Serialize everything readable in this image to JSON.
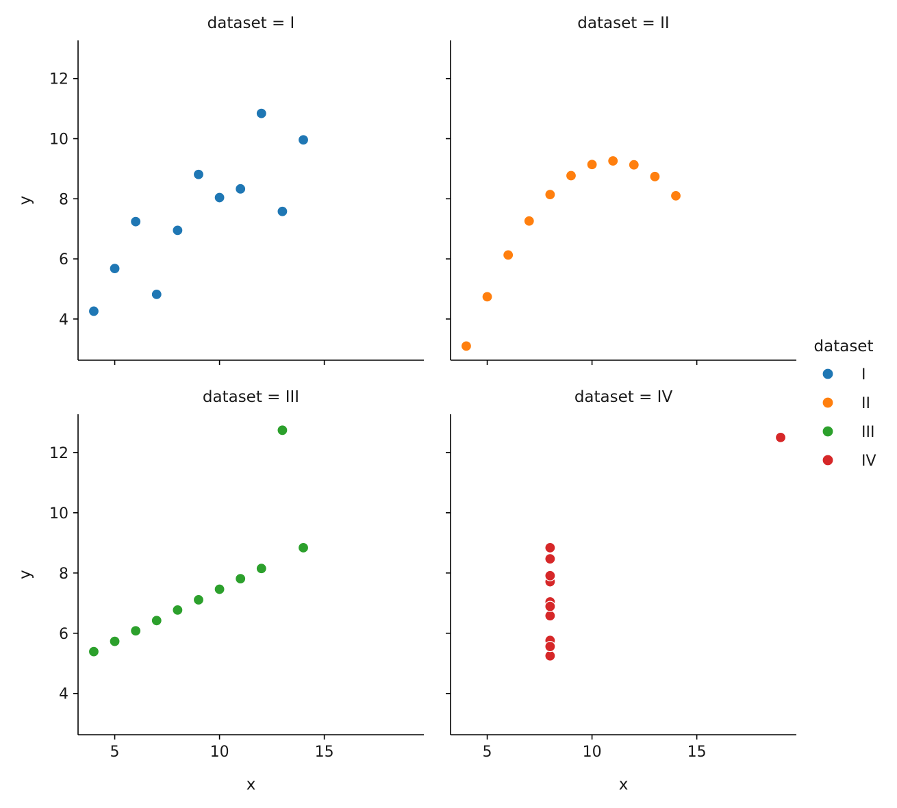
{
  "chart_data": {
    "type": "scatter",
    "xlabel": "x",
    "ylabel": "y",
    "xlim": [
      3.25,
      19.75
    ],
    "ylim": [
      2.63,
      13.27
    ],
    "xticks": [
      5,
      10,
      15
    ],
    "yticks": [
      4,
      6,
      8,
      10,
      12
    ],
    "grid": false,
    "legend": {
      "title": "dataset",
      "placement": "right",
      "entries": [
        {
          "label": "I",
          "color": "#1f77b4"
        },
        {
          "label": "II",
          "color": "#ff7f0e"
        },
        {
          "label": "III",
          "color": "#2ca02c"
        },
        {
          "label": "IV",
          "color": "#d62728"
        }
      ]
    },
    "panels": [
      {
        "title": "dataset = I",
        "color": "#1f77b4",
        "x": [
          10,
          8,
          13,
          9,
          11,
          14,
          6,
          4,
          12,
          7,
          5
        ],
        "y": [
          8.04,
          6.95,
          7.58,
          8.81,
          8.33,
          9.96,
          7.24,
          4.26,
          10.84,
          4.82,
          5.68
        ]
      },
      {
        "title": "dataset = II",
        "color": "#ff7f0e",
        "x": [
          10,
          8,
          13,
          9,
          11,
          14,
          6,
          4,
          12,
          7,
          5
        ],
        "y": [
          9.14,
          8.14,
          8.74,
          8.77,
          9.26,
          8.1,
          6.13,
          3.1,
          9.13,
          7.26,
          4.74
        ]
      },
      {
        "title": "dataset = III",
        "color": "#2ca02c",
        "x": [
          10,
          8,
          13,
          9,
          11,
          14,
          6,
          4,
          12,
          7,
          5
        ],
        "y": [
          7.46,
          6.77,
          12.74,
          7.11,
          7.81,
          8.84,
          6.08,
          5.39,
          8.15,
          6.42,
          5.73
        ]
      },
      {
        "title": "dataset = IV",
        "color": "#d62728",
        "x": [
          8,
          8,
          8,
          8,
          8,
          8,
          8,
          19,
          8,
          8,
          8
        ],
        "y": [
          6.58,
          5.76,
          7.71,
          8.84,
          8.47,
          7.04,
          5.25,
          12.5,
          5.56,
          7.91,
          6.89
        ]
      }
    ]
  }
}
